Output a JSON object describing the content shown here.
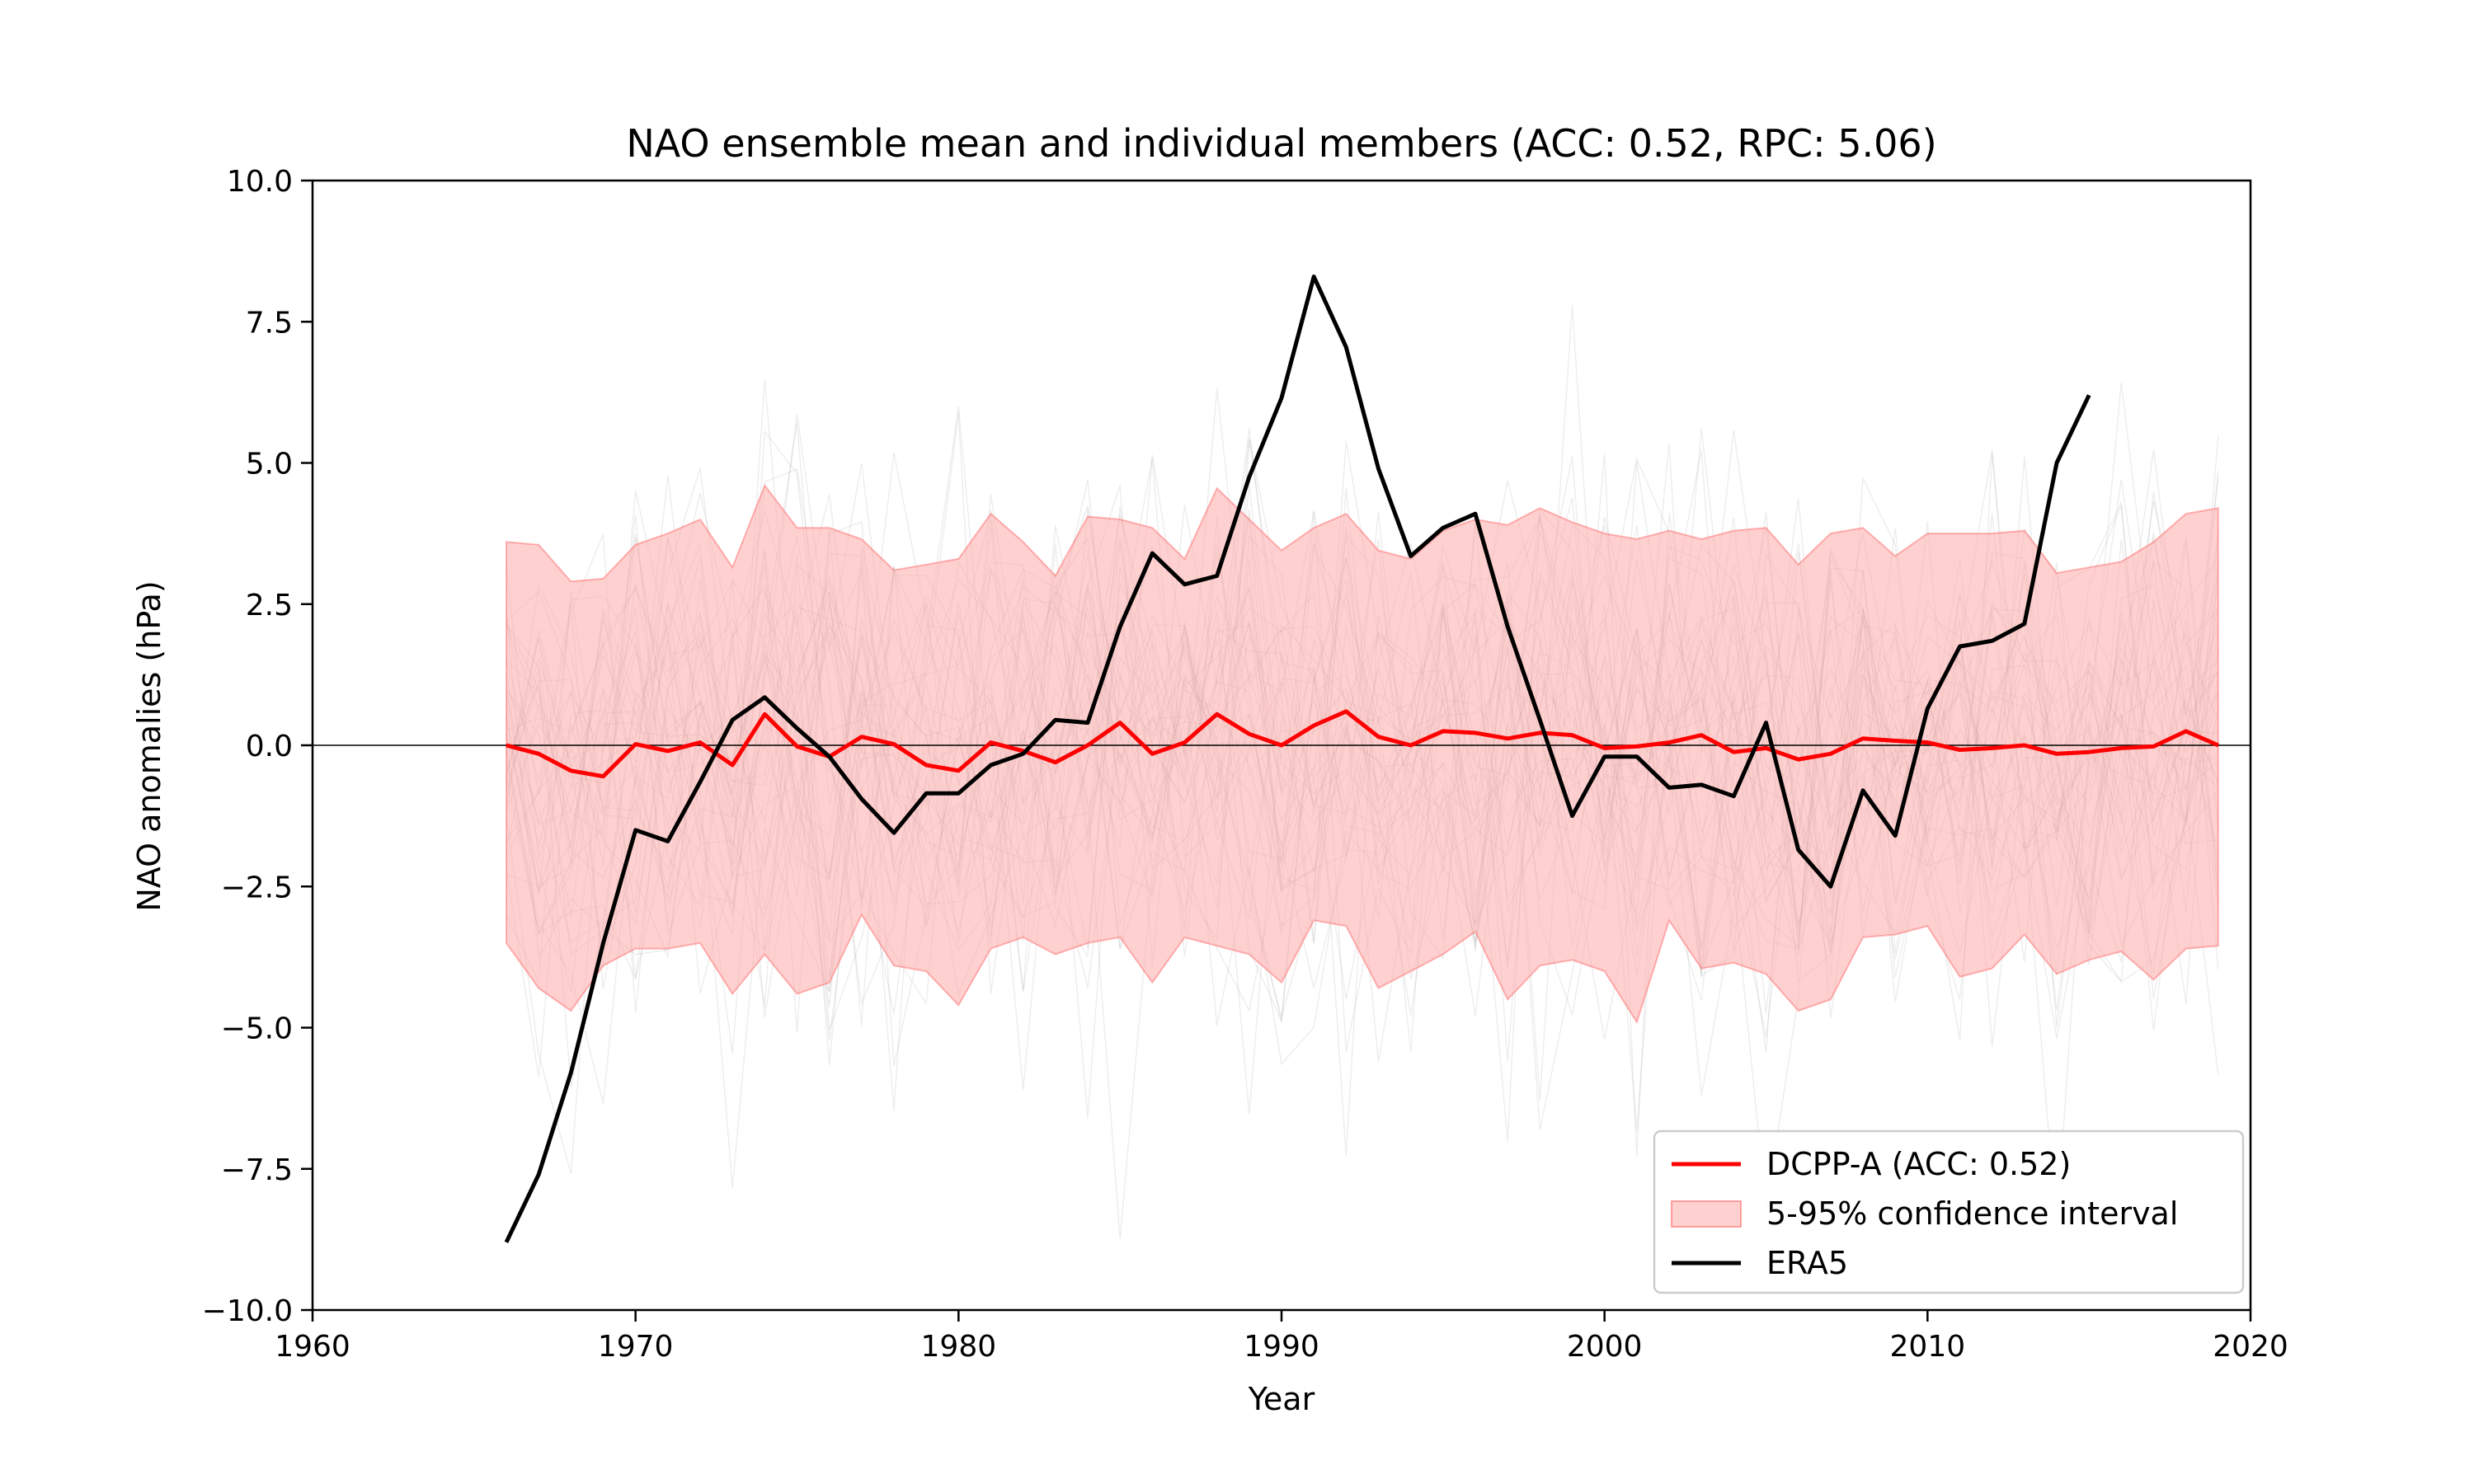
{
  "chart_data": {
    "type": "line",
    "title": "NAO ensemble mean and individual members (ACC: 0.52, RPC: 5.06)",
    "xlabel": "Year",
    "ylabel": "NAO anomalies (hPa)",
    "xlim": [
      1960,
      2020
    ],
    "ylim": [
      -10,
      10
    ],
    "xticks": [
      1960,
      1970,
      1980,
      1990,
      2000,
      2010,
      2020
    ],
    "yticks": [
      10.0,
      7.5,
      5.0,
      2.5,
      0.0,
      -2.5,
      -5.0,
      -7.5,
      -10.0
    ],
    "ytick_labels": [
      "10.0",
      "7.5",
      "5.0",
      "2.5",
      "0.0",
      "−2.5",
      "−5.0",
      "−7.5",
      "−10.0"
    ],
    "zero_line": true,
    "grid": false,
    "legend_position": "lower-right",
    "colors": {
      "dcpp": "#ff0000",
      "band_fill": "#ffaaaa",
      "band_edge": "#ff6b6b",
      "era5": "#000000",
      "members": "#999999"
    },
    "series": [
      {
        "name": "DCPP-A (ACC: 0.52)",
        "kind": "line",
        "x": [
          1966,
          1967,
          1968,
          1969,
          1970,
          1971,
          1972,
          1973,
          1974,
          1975,
          1976,
          1977,
          1978,
          1979,
          1980,
          1981,
          1982,
          1983,
          1984,
          1985,
          1986,
          1987,
          1988,
          1989,
          1990,
          1991,
          1992,
          1993,
          1994,
          1995,
          1996,
          1997,
          1998,
          1999,
          2000,
          2001,
          2002,
          2003,
          2004,
          2005,
          2006,
          2007,
          2008,
          2009,
          2010,
          2011,
          2012,
          2013,
          2014,
          2015,
          2016,
          2017,
          2018,
          2019
        ],
        "y": [
          0.0,
          -0.15,
          -0.45,
          -0.55,
          0.02,
          -0.1,
          0.05,
          -0.35,
          0.55,
          -0.02,
          -0.2,
          0.15,
          0.02,
          -0.35,
          -0.45,
          0.05,
          -0.1,
          -0.3,
          0.0,
          0.4,
          -0.15,
          0.05,
          0.55,
          0.2,
          0.0,
          0.35,
          0.6,
          0.15,
          0.0,
          0.25,
          0.22,
          0.12,
          0.22,
          0.18,
          -0.05,
          -0.02,
          0.05,
          0.18,
          -0.12,
          -0.05,
          -0.25,
          -0.15,
          0.12,
          0.08,
          0.05,
          -0.08,
          -0.05,
          0.0,
          -0.15,
          -0.12,
          -0.05,
          -0.02,
          0.25,
          0.0
        ]
      },
      {
        "name": "5-95% confidence interval",
        "kind": "band",
        "x": [
          1966,
          1967,
          1968,
          1969,
          1970,
          1971,
          1972,
          1973,
          1974,
          1975,
          1976,
          1977,
          1978,
          1979,
          1980,
          1981,
          1982,
          1983,
          1984,
          1985,
          1986,
          1987,
          1988,
          1989,
          1990,
          1991,
          1992,
          1993,
          1994,
          1995,
          1996,
          1997,
          1998,
          1999,
          2000,
          2001,
          2002,
          2003,
          2004,
          2005,
          2006,
          2007,
          2008,
          2009,
          2010,
          2011,
          2012,
          2013,
          2014,
          2015,
          2016,
          2017,
          2018,
          2019
        ],
        "upper": [
          3.6,
          3.55,
          2.9,
          2.95,
          3.55,
          3.75,
          4.0,
          3.15,
          4.6,
          3.85,
          3.85,
          3.65,
          3.1,
          3.2,
          3.3,
          4.1,
          3.6,
          3.0,
          4.05,
          4.0,
          3.85,
          3.3,
          4.55,
          4.0,
          3.45,
          3.85,
          4.1,
          3.45,
          3.3,
          3.8,
          4.0,
          3.9,
          4.2,
          3.95,
          3.75,
          3.65,
          3.8,
          3.65,
          3.8,
          3.85,
          3.2,
          3.75,
          3.85,
          3.35,
          3.75,
          3.75,
          3.75,
          3.8,
          3.05,
          3.15,
          3.25,
          3.6,
          4.1,
          4.2
        ],
        "lower": [
          -3.5,
          -4.3,
          -4.7,
          -3.9,
          -3.6,
          -3.6,
          -3.5,
          -4.4,
          -3.7,
          -4.4,
          -4.2,
          -3.0,
          -3.9,
          -4.0,
          -4.6,
          -3.6,
          -3.4,
          -3.7,
          -3.5,
          -3.4,
          -4.2,
          -3.4,
          -3.55,
          -3.7,
          -4.2,
          -3.1,
          -3.2,
          -4.3,
          -4.0,
          -3.7,
          -3.3,
          -4.5,
          -3.9,
          -3.8,
          -4.0,
          -4.9,
          -3.1,
          -3.95,
          -3.85,
          -4.05,
          -4.7,
          -4.5,
          -3.4,
          -3.35,
          -3.2,
          -4.1,
          -3.95,
          -3.35,
          -4.05,
          -3.8,
          -3.65,
          -4.15,
          -3.6,
          -3.55
        ]
      },
      {
        "name": "ERA5",
        "kind": "line",
        "x": [
          1966,
          1967,
          1968,
          1969,
          1970,
          1971,
          1972,
          1973,
          1974,
          1975,
          1976,
          1977,
          1978,
          1979,
          1980,
          1981,
          1982,
          1983,
          1984,
          1985,
          1986,
          1987,
          1988,
          1989,
          1990,
          1991,
          1992,
          1993,
          1994,
          1995,
          1996,
          1997,
          1998,
          1999,
          2000,
          2001,
          2002,
          2003,
          2004,
          2005,
          2006,
          2007,
          2008,
          2009,
          2010,
          2011,
          2012,
          2013,
          2014,
          2015
        ],
        "y": [
          -8.8,
          -7.6,
          -5.8,
          -3.5,
          -1.5,
          -1.7,
          -0.65,
          0.45,
          0.85,
          0.3,
          -0.2,
          -0.95,
          -1.55,
          -0.85,
          -0.85,
          -0.35,
          -0.15,
          0.45,
          0.4,
          2.1,
          3.4,
          2.85,
          3.0,
          4.75,
          6.15,
          8.3,
          7.05,
          4.9,
          3.35,
          3.85,
          4.1,
          2.1,
          0.45,
          -1.25,
          -0.2,
          -0.2,
          -0.75,
          -0.7,
          -0.9,
          0.4,
          -1.85,
          -2.5,
          -0.8,
          -1.6,
          0.65,
          1.75,
          1.85,
          2.15,
          5.0,
          6.2
        ]
      }
    ],
    "ensemble_members_count": 40
  }
}
